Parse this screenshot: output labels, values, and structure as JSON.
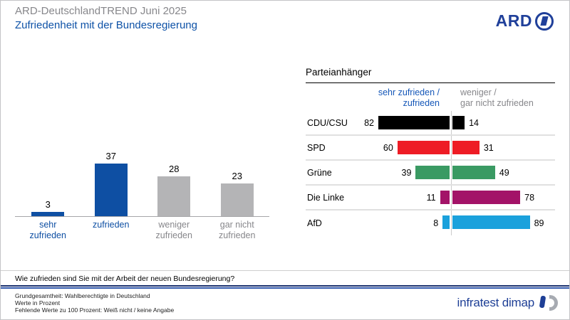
{
  "header": {
    "pretitle": "ARD-DeutschlandTREND Juni 2025",
    "title": "Zufriedenheit mit der Bundesregierung",
    "ard_logo_text": "ARD"
  },
  "colors": {
    "chart_blue": "#0E4FA3",
    "logo_navy": "#20409A",
    "gray_bar": "#B4B4B6",
    "gray_text": "#87878B",
    "legend_blue": "#1557B8",
    "divider": "#E0E0E0"
  },
  "chart_data": [
    {
      "type": "bar",
      "title": "Zufriedenheit mit der Bundesregierung",
      "categories": [
        "sehr zufrieden",
        "zufrieden",
        "weniger zufrieden",
        "gar nicht zufrieden"
      ],
      "category_labels": [
        "sehr\nzufrieden",
        "zufrieden",
        "weniger\nzufrieden",
        "gar nicht\nzufrieden"
      ],
      "values": [
        3,
        37,
        28,
        23
      ],
      "bar_colors": [
        "#0E4FA3",
        "#0E4FA3",
        "#B4B4B6",
        "#B4B4B6"
      ],
      "label_colors": [
        "#0E4FA3",
        "#0E4FA3",
        "#87878B",
        "#87878B"
      ],
      "unit": "Prozent",
      "ylim": [
        0,
        40
      ],
      "grid": false
    },
    {
      "type": "diverging-bar",
      "title": "Parteianhänger",
      "categories": [
        "CDU/CSU",
        "SPD",
        "Grüne",
        "Die Linke",
        "AfD"
      ],
      "series": [
        {
          "name": "sehr zufrieden / zufrieden",
          "side": "left",
          "values": [
            82,
            60,
            39,
            11,
            8
          ]
        },
        {
          "name": "weniger / gar nicht zufrieden",
          "side": "right",
          "values": [
            14,
            31,
            49,
            78,
            89
          ]
        }
      ],
      "bar_colors": [
        "#000000",
        "#EE1C25",
        "#3A9A63",
        "#A31368",
        "#1BA1DC"
      ],
      "unit": "Prozent"
    }
  ],
  "party_panel": {
    "title": "Parteianhänger",
    "legend_left": "sehr zufrieden /\nzufrieden",
    "legend_right": "weniger /\ngar nicht zufrieden"
  },
  "footer": {
    "question": "Wie zufrieden sind Sie mit der Arbeit der neuen Bundesregierung?",
    "notes": [
      "Grundgesamtheit: Wahlberechtigte in Deutschland",
      "Werte in Prozent",
      "Fehlende Werte zu 100 Prozent: Weiß nicht / keine Angabe"
    ],
    "brand": "infratest dimap"
  }
}
